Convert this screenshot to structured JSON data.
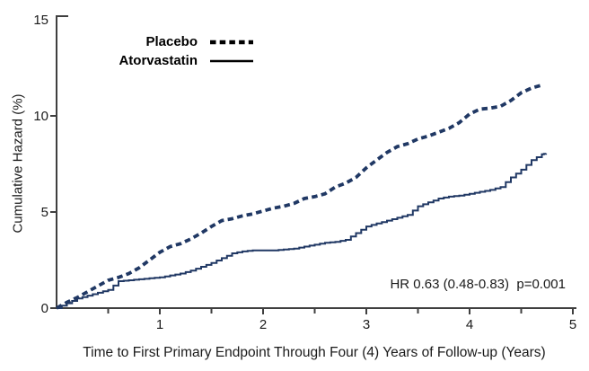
{
  "colors": {
    "curve": "#203864",
    "axis": "#3f3f3f",
    "text": "#000000",
    "background": "#ffffff",
    "legend_sample": "#000000"
  },
  "annotation": {
    "text": "HR 0.63 (0.48-0.83)  p=0.001"
  },
  "chart_data": {
    "type": "line",
    "subtype": "cumulative-hazard-survival-curves",
    "title": "",
    "xlabel": "Time to First Primary Endpoint Through Four (4) Years of Follow-up (Years)",
    "ylabel": "Cumulative Hazard (%)",
    "xlim": [
      0,
      5
    ],
    "ylim": [
      0,
      15
    ],
    "x_major_ticks": [
      1,
      2,
      3,
      4,
      5
    ],
    "x_minor_tick_step": 0.5,
    "y_ticks": [
      0,
      5,
      10,
      15
    ],
    "grid": false,
    "legend_position": "top-left-inside",
    "annotation": "HR 0.63 (0.48-0.83)  p=0.001",
    "series": [
      {
        "name": "Placebo",
        "line_style": "dashed",
        "color": "#203864",
        "points": [
          [
            0,
            0
          ],
          [
            0.1,
            0.3
          ],
          [
            0.2,
            0.55
          ],
          [
            0.3,
            0.85
          ],
          [
            0.4,
            1.15
          ],
          [
            0.5,
            1.45
          ],
          [
            0.6,
            1.6
          ],
          [
            0.7,
            1.8
          ],
          [
            0.8,
            2.1
          ],
          [
            0.9,
            2.5
          ],
          [
            1.0,
            2.9
          ],
          [
            1.1,
            3.2
          ],
          [
            1.2,
            3.35
          ],
          [
            1.3,
            3.6
          ],
          [
            1.4,
            3.9
          ],
          [
            1.5,
            4.25
          ],
          [
            1.6,
            4.55
          ],
          [
            1.7,
            4.65
          ],
          [
            1.8,
            4.8
          ],
          [
            1.9,
            4.9
          ],
          [
            2.0,
            5.05
          ],
          [
            2.1,
            5.2
          ],
          [
            2.2,
            5.3
          ],
          [
            2.3,
            5.45
          ],
          [
            2.4,
            5.7
          ],
          [
            2.5,
            5.8
          ],
          [
            2.6,
            5.95
          ],
          [
            2.7,
            6.3
          ],
          [
            2.8,
            6.5
          ],
          [
            2.9,
            6.8
          ],
          [
            3.0,
            7.3
          ],
          [
            3.1,
            7.7
          ],
          [
            3.2,
            8.1
          ],
          [
            3.3,
            8.4
          ],
          [
            3.4,
            8.55
          ],
          [
            3.5,
            8.8
          ],
          [
            3.6,
            8.95
          ],
          [
            3.7,
            9.15
          ],
          [
            3.8,
            9.35
          ],
          [
            3.9,
            9.65
          ],
          [
            4.0,
            10.1
          ],
          [
            4.1,
            10.35
          ],
          [
            4.2,
            10.4
          ],
          [
            4.3,
            10.5
          ],
          [
            4.4,
            10.8
          ],
          [
            4.5,
            11.2
          ],
          [
            4.6,
            11.45
          ],
          [
            4.7,
            11.6
          ]
        ]
      },
      {
        "name": "Atorvastatin",
        "line_style": "solid",
        "color": "#203864",
        "points": [
          [
            0,
            0
          ],
          [
            0.1,
            0.25
          ],
          [
            0.2,
            0.5
          ],
          [
            0.3,
            0.65
          ],
          [
            0.4,
            0.8
          ],
          [
            0.5,
            0.95
          ],
          [
            0.6,
            1.4
          ],
          [
            0.7,
            1.45
          ],
          [
            0.8,
            1.5
          ],
          [
            0.9,
            1.55
          ],
          [
            1.0,
            1.6
          ],
          [
            1.1,
            1.7
          ],
          [
            1.2,
            1.8
          ],
          [
            1.3,
            1.95
          ],
          [
            1.4,
            2.15
          ],
          [
            1.5,
            2.35
          ],
          [
            1.6,
            2.6
          ],
          [
            1.7,
            2.85
          ],
          [
            1.8,
            2.95
          ],
          [
            1.9,
            3.0
          ],
          [
            2.0,
            3.0
          ],
          [
            2.1,
            3.0
          ],
          [
            2.2,
            3.05
          ],
          [
            2.3,
            3.1
          ],
          [
            2.4,
            3.2
          ],
          [
            2.5,
            3.3
          ],
          [
            2.6,
            3.4
          ],
          [
            2.7,
            3.45
          ],
          [
            2.8,
            3.55
          ],
          [
            2.9,
            3.9
          ],
          [
            3.0,
            4.25
          ],
          [
            3.1,
            4.4
          ],
          [
            3.2,
            4.55
          ],
          [
            3.3,
            4.7
          ],
          [
            3.4,
            4.85
          ],
          [
            3.5,
            5.3
          ],
          [
            3.6,
            5.5
          ],
          [
            3.7,
            5.7
          ],
          [
            3.8,
            5.8
          ],
          [
            3.9,
            5.85
          ],
          [
            4.0,
            5.95
          ],
          [
            4.1,
            6.05
          ],
          [
            4.2,
            6.15
          ],
          [
            4.3,
            6.3
          ],
          [
            4.4,
            6.8
          ],
          [
            4.5,
            7.2
          ],
          [
            4.6,
            7.7
          ],
          [
            4.7,
            8.0
          ],
          [
            4.74,
            8.05
          ]
        ]
      }
    ]
  }
}
